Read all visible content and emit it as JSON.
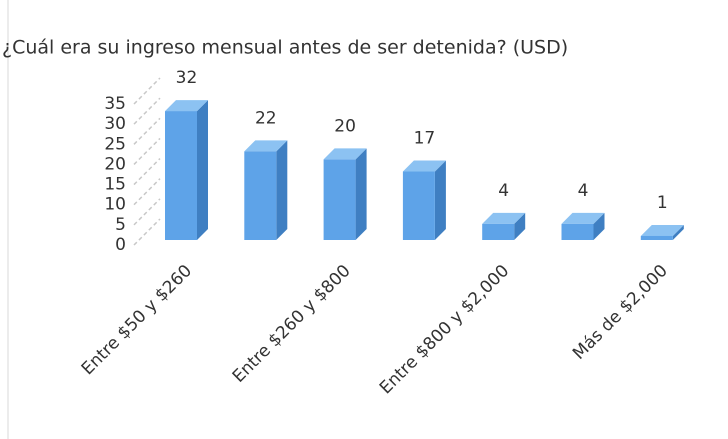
{
  "chart_data": {
    "type": "bar3d",
    "title": "¿Cuál era su ingreso mensual antes de ser detenida? (USD)",
    "categories": [
      "Entre $50 y $260",
      null,
      "Entre $260 y $800",
      null,
      "Entre $800 y $2,000",
      null,
      "Más de $2,000"
    ],
    "values": [
      32,
      22,
      20,
      17,
      4,
      4,
      1
    ],
    "color": "#5ea3e8",
    "ylim": [
      0,
      35
    ],
    "yticks": [
      0,
      5,
      10,
      15,
      20,
      25,
      30,
      35
    ],
    "grid": true
  }
}
